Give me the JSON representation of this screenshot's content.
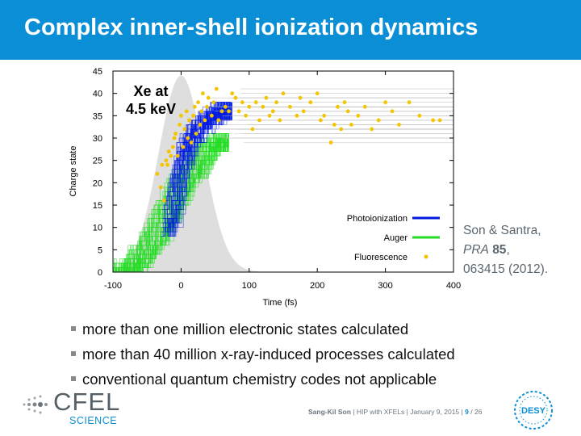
{
  "slide": {
    "title": "Complex inner-shell ionization dynamics"
  },
  "citation": {
    "authors": "Son & Santra,",
    "journal": "PRA",
    "volume": "85",
    "trailing_comma": ",",
    "pages": "063415 (2012)."
  },
  "bullets": [
    "more than one million electronic states calculated",
    "more than 40 million x-ray-induced processes calculated",
    "conventional quantum chemistry codes not applicable"
  ],
  "footer": {
    "author": "Sang-Kil Son",
    "separator1": "|",
    "event": "HIP with XFELs",
    "separator2": "|",
    "date": "January 9, 2015",
    "separator3": "|",
    "page": "9",
    "total": "/ 26"
  },
  "logos": {
    "cfel_word": "CFEL",
    "cfel_sub": "SCIENCE",
    "desy_word": "DESY"
  },
  "colors": {
    "title_bar": "#0a8fd6",
    "photoionization": "#0018e0",
    "auger": "#22dd22",
    "fluorescence": "#f5c400",
    "pulse": "#d8d8d8"
  },
  "chart_data": {
    "type": "scatter",
    "annotation": [
      "Xe at",
      "4.5 keV"
    ],
    "xlabel": "Time (fs)",
    "ylabel": "Charge state",
    "xlim": [
      -100,
      400
    ],
    "ylim": [
      0,
      45
    ],
    "x_ticks": [
      "-100",
      "0",
      "100",
      "200",
      "300",
      "400"
    ],
    "y_ticks": [
      "0",
      "5",
      "10",
      "15",
      "20",
      "25",
      "30",
      "35",
      "40",
      "45"
    ],
    "grid": false,
    "legend_position": "bottom-right",
    "legend": [
      "Photoionization",
      "Auger",
      "Fluorescence"
    ],
    "pulse_envelope": {
      "center": 0,
      "sigma": 33,
      "peak_charge": 44
    },
    "series": [
      {
        "name": "Photoionization",
        "kind": "line",
        "x": [
          -20,
          -15,
          -10,
          -5,
          0,
          5,
          10,
          15,
          20,
          25,
          30,
          35,
          40,
          45,
          50,
          55,
          60
        ],
        "y": [
          10,
          14,
          18,
          21,
          24,
          27,
          29,
          30,
          31,
          32,
          33,
          34,
          34,
          35,
          35,
          36,
          36
        ]
      },
      {
        "name": "Auger",
        "kind": "line",
        "x": [
          -120,
          -90,
          -70,
          -60,
          -50,
          -40,
          -30,
          -20,
          -10,
          0,
          10,
          20,
          30,
          40,
          50
        ],
        "y": [
          0,
          0,
          2,
          4,
          6,
          8,
          11,
          14,
          17,
          20,
          22,
          24,
          26,
          28,
          29
        ]
      },
      {
        "name": "Fluorescence",
        "kind": "points",
        "x": [
          -35,
          -30,
          -28,
          -25,
          -22,
          -20,
          -18,
          -15,
          -12,
          -10,
          -8,
          -5,
          -2,
          0,
          3,
          5,
          8,
          10,
          12,
          15,
          18,
          20,
          22,
          25,
          28,
          30,
          32,
          35,
          38,
          40,
          45,
          48,
          52,
          55,
          60,
          65,
          70,
          75,
          80,
          85,
          90,
          95,
          100,
          105,
          110,
          115,
          120,
          125,
          130,
          135,
          140,
          145,
          150,
          160,
          170,
          175,
          180,
          190,
          200,
          205,
          210,
          220,
          225,
          230,
          235,
          240,
          245,
          250,
          260,
          270,
          280,
          290,
          300,
          310,
          320,
          335,
          350,
          370,
          380
        ],
        "y": [
          22,
          19,
          24,
          16,
          25,
          24,
          27,
          26,
          28,
          30,
          31,
          26,
          33,
          35,
          28,
          32,
          36,
          30,
          34,
          29,
          35,
          37,
          31,
          38,
          33,
          36,
          40,
          34,
          37,
          39,
          35,
          38,
          41,
          34,
          36,
          37,
          36,
          40,
          39,
          36,
          38,
          35,
          37,
          32,
          38,
          34,
          37,
          39,
          35,
          36,
          38,
          34,
          40,
          37,
          35,
          39,
          36,
          38,
          40,
          34,
          35,
          29,
          33,
          37,
          32,
          38,
          36,
          33,
          35,
          37,
          32,
          34,
          38,
          36,
          33,
          38,
          35,
          34,
          34
        ]
      }
    ]
  }
}
